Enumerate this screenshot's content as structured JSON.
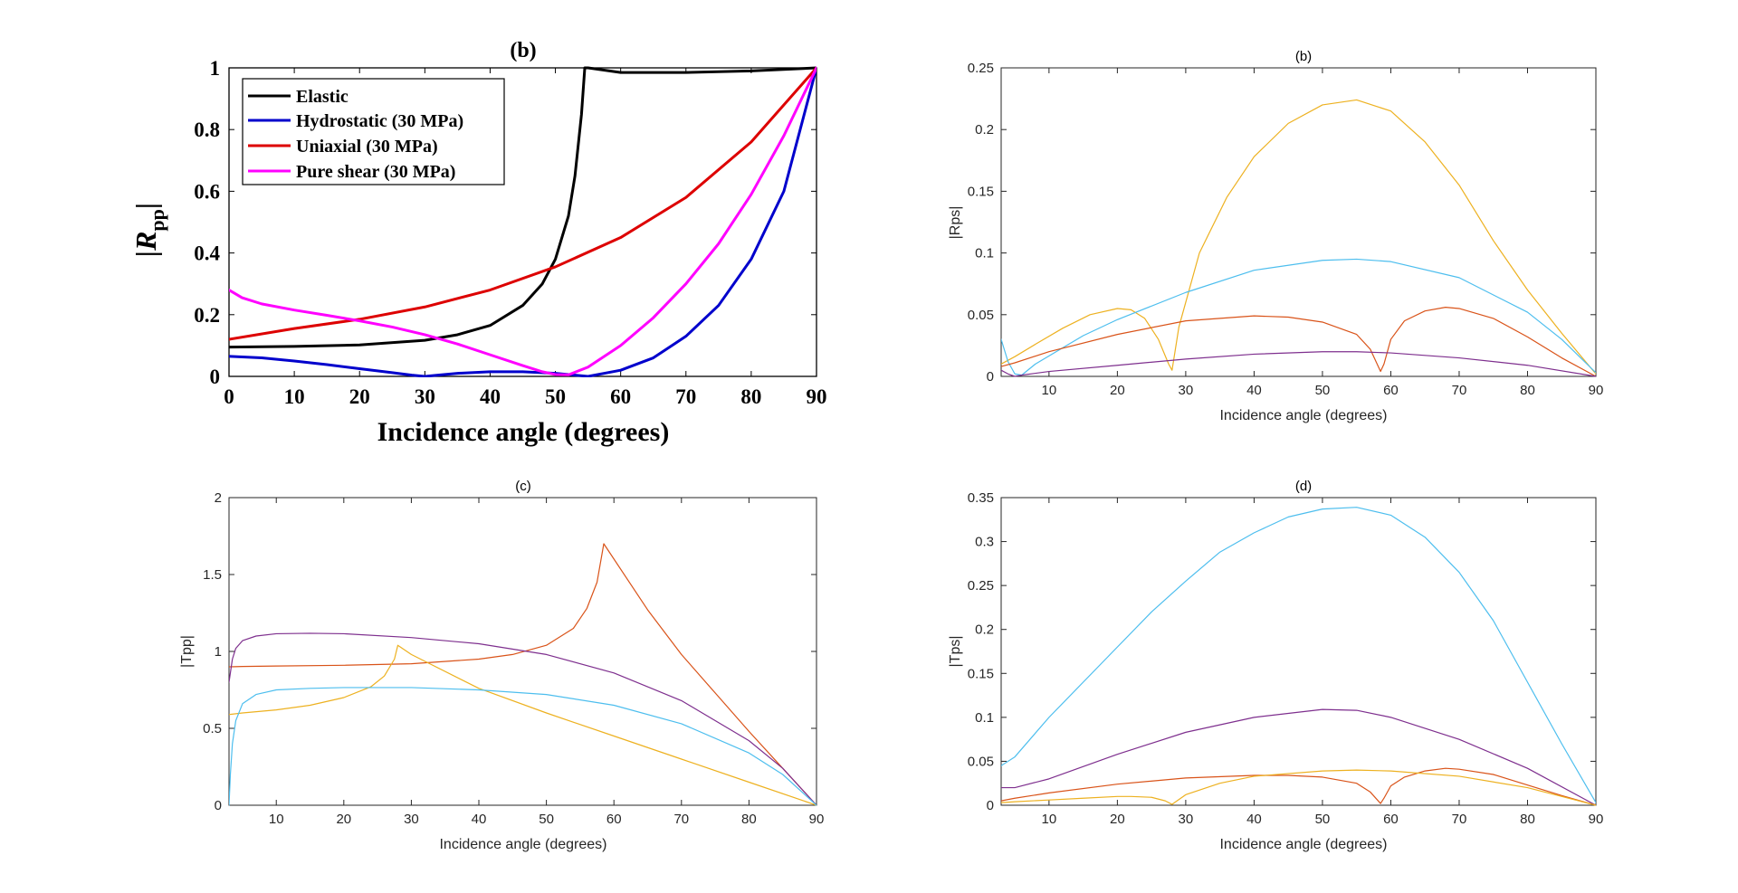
{
  "figure": {
    "background": "#ffffff",
    "colors": {
      "black": "#000000",
      "blue": "#0000cc",
      "red": "#dd0000",
      "magenta": "#ff00ff",
      "matlab_orange": "#D95319",
      "matlab_yellow": "#EDB120",
      "matlab_purple": "#7E2F8E",
      "matlab_cyan": "#4DBEEE"
    }
  },
  "chart_data": [
    {
      "id": "a",
      "type": "line",
      "title": "(b)",
      "xlabel": "Incidence angle (degrees)",
      "ylabel_main": "|R",
      "ylabel_sub": "pp",
      "ylabel_end": "|",
      "xlim": [
        0,
        90
      ],
      "ylim": [
        0,
        1
      ],
      "xticks": [
        0,
        10,
        20,
        30,
        40,
        50,
        60,
        70,
        80,
        90
      ],
      "yticks": [
        0,
        0.2,
        0.4,
        0.6,
        0.8,
        1
      ],
      "ytick_labels": [
        "0",
        "0.2",
        "0.4",
        "0.6",
        "0.8",
        "1"
      ],
      "grid": false,
      "legend_position": "top-left",
      "series": [
        {
          "name": "Elastic",
          "color": "#000000",
          "x": [
            0,
            10,
            20,
            30,
            35,
            40,
            45,
            48,
            50,
            52,
            53,
            54,
            54.5,
            55,
            60,
            70,
            80,
            90
          ],
          "y": [
            0.095,
            0.097,
            0.102,
            0.117,
            0.135,
            0.165,
            0.23,
            0.3,
            0.38,
            0.52,
            0.65,
            0.85,
            1.0,
            1.0,
            0.985,
            0.985,
            0.99,
            1.0
          ]
        },
        {
          "name": "Hydrostatic (30 MPa)",
          "color": "#0000cc",
          "x": [
            0,
            5,
            10,
            15,
            20,
            25,
            28,
            30,
            32,
            35,
            40,
            45,
            50,
            53,
            55,
            60,
            65,
            70,
            75,
            80,
            85,
            90
          ],
          "y": [
            0.065,
            0.06,
            0.05,
            0.038,
            0.025,
            0.012,
            0.004,
            0.0,
            0.004,
            0.01,
            0.015,
            0.015,
            0.01,
            0.004,
            0.0,
            0.02,
            0.06,
            0.13,
            0.23,
            0.38,
            0.6,
            1.0
          ]
        },
        {
          "name": "Uniaxial (30 MPa)",
          "color": "#dd0000",
          "x": [
            0,
            10,
            20,
            30,
            40,
            50,
            60,
            70,
            80,
            90
          ],
          "y": [
            0.12,
            0.155,
            0.185,
            0.225,
            0.28,
            0.355,
            0.45,
            0.58,
            0.76,
            1.0
          ]
        },
        {
          "name": "Pure shear (30 MPa)",
          "color": "#ff00ff",
          "x": [
            0,
            2,
            5,
            10,
            15,
            20,
            25,
            30,
            35,
            40,
            45,
            48,
            50,
            52,
            55,
            60,
            65,
            70,
            75,
            80,
            85,
            90
          ],
          "y": [
            0.28,
            0.255,
            0.235,
            0.215,
            0.198,
            0.18,
            0.16,
            0.135,
            0.105,
            0.07,
            0.035,
            0.015,
            0.006,
            0.005,
            0.03,
            0.1,
            0.19,
            0.3,
            0.43,
            0.59,
            0.78,
            1.0
          ]
        }
      ]
    },
    {
      "id": "b",
      "type": "line",
      "title": "(b)",
      "xlabel": "Incidence angle (degrees)",
      "ylabel": "|Rps|",
      "xlim": [
        3,
        90
      ],
      "ylim": [
        0,
        0.25
      ],
      "xticks": [
        10,
        20,
        30,
        40,
        50,
        60,
        70,
        80,
        90
      ],
      "yticks": [
        0,
        0.05,
        0.1,
        0.15,
        0.2,
        0.25
      ],
      "ytick_labels": [
        "0",
        "0.05",
        "0.1",
        "0.15",
        "0.2",
        "0.25"
      ],
      "grid": false,
      "series": [
        {
          "color": "#EDB120",
          "x": [
            3,
            5,
            8,
            12,
            16,
            20,
            22,
            24,
            26,
            27.5,
            28,
            29,
            32,
            36,
            40,
            45,
            50,
            55,
            60,
            65,
            70,
            75,
            80,
            85,
            90
          ],
          "y": [
            0.01,
            0.016,
            0.026,
            0.039,
            0.05,
            0.055,
            0.054,
            0.047,
            0.03,
            0.01,
            0.005,
            0.04,
            0.1,
            0.145,
            0.178,
            0.205,
            0.22,
            0.224,
            0.215,
            0.19,
            0.155,
            0.11,
            0.07,
            0.035,
            0.002
          ]
        },
        {
          "color": "#4DBEEE",
          "x": [
            3,
            4,
            5,
            6,
            8,
            15,
            20,
            30,
            40,
            50,
            55,
            60,
            70,
            80,
            85,
            90
          ],
          "y": [
            0.03,
            0.012,
            0.002,
            0.001,
            0.01,
            0.033,
            0.046,
            0.068,
            0.086,
            0.094,
            0.095,
            0.093,
            0.08,
            0.052,
            0.03,
            0.003
          ]
        },
        {
          "color": "#D95319",
          "x": [
            3,
            5,
            10,
            20,
            30,
            40,
            45,
            50,
            55,
            57,
            58.5,
            59,
            60,
            62,
            65,
            68,
            70,
            75,
            80,
            85,
            90
          ],
          "y": [
            0.008,
            0.011,
            0.02,
            0.034,
            0.045,
            0.049,
            0.048,
            0.044,
            0.034,
            0.022,
            0.004,
            0.01,
            0.03,
            0.045,
            0.053,
            0.056,
            0.055,
            0.047,
            0.032,
            0.015,
            0.0
          ]
        },
        {
          "color": "#7E2F8E",
          "x": [
            3,
            4,
            5,
            6,
            10,
            20,
            30,
            40,
            50,
            55,
            60,
            70,
            80,
            90
          ],
          "y": [
            0.005,
            0.002,
            0.0,
            0.001,
            0.004,
            0.009,
            0.014,
            0.018,
            0.02,
            0.02,
            0.019,
            0.015,
            0.009,
            0.0
          ]
        }
      ]
    },
    {
      "id": "c",
      "type": "line",
      "title": "(c)",
      "xlabel": "Incidence angle (degrees)",
      "ylabel": "|Tpp|",
      "xlim": [
        3,
        90
      ],
      "ylim": [
        0,
        2
      ],
      "xticks": [
        10,
        20,
        30,
        40,
        50,
        60,
        70,
        80,
        90
      ],
      "yticks": [
        0,
        0.5,
        1,
        1.5,
        2
      ],
      "ytick_labels": [
        "0",
        "0.5",
        "1",
        "1.5",
        "2"
      ],
      "grid": false,
      "series": [
        {
          "color": "#D95319",
          "x": [
            3,
            5,
            10,
            20,
            30,
            40,
            45,
            50,
            54,
            56,
            57.5,
            58.5,
            65,
            70,
            75,
            80,
            85,
            90
          ],
          "y": [
            0.9,
            0.902,
            0.905,
            0.91,
            0.92,
            0.95,
            0.98,
            1.04,
            1.15,
            1.28,
            1.45,
            1.7,
            1.27,
            0.98,
            0.73,
            0.48,
            0.24,
            0.0
          ]
        },
        {
          "color": "#7E2F8E",
          "x": [
            3,
            3.5,
            4,
            5,
            7,
            10,
            15,
            20,
            30,
            40,
            50,
            60,
            70,
            80,
            85,
            90
          ],
          "y": [
            0.8,
            0.95,
            1.02,
            1.07,
            1.1,
            1.115,
            1.118,
            1.115,
            1.09,
            1.05,
            0.98,
            0.86,
            0.68,
            0.42,
            0.24,
            0.0
          ]
        },
        {
          "color": "#EDB120",
          "x": [
            3,
            5,
            10,
            15,
            20,
            24,
            26,
            27.5,
            28,
            30,
            40,
            50,
            60,
            70,
            80,
            90
          ],
          "y": [
            0.59,
            0.6,
            0.62,
            0.65,
            0.7,
            0.77,
            0.84,
            0.95,
            1.04,
            0.98,
            0.76,
            0.6,
            0.45,
            0.3,
            0.15,
            0.0
          ]
        },
        {
          "color": "#4DBEEE",
          "x": [
            3,
            3.2,
            3.5,
            4,
            5,
            7,
            10,
            15,
            20,
            30,
            40,
            50,
            60,
            70,
            80,
            85,
            90
          ],
          "y": [
            0.0,
            0.2,
            0.4,
            0.55,
            0.66,
            0.72,
            0.75,
            0.76,
            0.765,
            0.765,
            0.75,
            0.72,
            0.65,
            0.53,
            0.34,
            0.2,
            0.0
          ]
        }
      ]
    },
    {
      "id": "d",
      "type": "line",
      "title": "(d)",
      "xlabel": "Incidence angle (degrees)",
      "ylabel": "|Tps|",
      "xlim": [
        3,
        90
      ],
      "ylim": [
        0,
        0.35
      ],
      "xticks": [
        10,
        20,
        30,
        40,
        50,
        60,
        70,
        80,
        90
      ],
      "yticks": [
        0,
        0.05,
        0.1,
        0.15,
        0.2,
        0.25,
        0.3,
        0.35
      ],
      "ytick_labels": [
        "0",
        "0.05",
        "0.1",
        "0.15",
        "0.2",
        "0.25",
        "0.3",
        "0.35"
      ],
      "grid": false,
      "series": [
        {
          "color": "#4DBEEE",
          "x": [
            3,
            5,
            10,
            15,
            20,
            25,
            30,
            35,
            40,
            45,
            50,
            55,
            60,
            65,
            70,
            75,
            80,
            85,
            90
          ],
          "y": [
            0.045,
            0.055,
            0.1,
            0.14,
            0.18,
            0.22,
            0.255,
            0.288,
            0.31,
            0.328,
            0.337,
            0.339,
            0.33,
            0.305,
            0.265,
            0.21,
            0.14,
            0.07,
            0.003
          ]
        },
        {
          "color": "#7E2F8E",
          "x": [
            3,
            5,
            10,
            20,
            30,
            40,
            50,
            55,
            60,
            70,
            80,
            90
          ],
          "y": [
            0.02,
            0.02,
            0.03,
            0.058,
            0.083,
            0.1,
            0.109,
            0.108,
            0.1,
            0.075,
            0.042,
            0.0
          ]
        },
        {
          "color": "#D95319",
          "x": [
            3,
            5,
            10,
            20,
            30,
            40,
            45,
            50,
            55,
            57,
            58.5,
            59,
            60,
            62,
            65,
            68,
            70,
            75,
            80,
            85,
            90
          ],
          "y": [
            0.005,
            0.008,
            0.014,
            0.024,
            0.031,
            0.034,
            0.034,
            0.032,
            0.025,
            0.015,
            0.002,
            0.008,
            0.022,
            0.032,
            0.039,
            0.042,
            0.041,
            0.035,
            0.023,
            0.011,
            0.0
          ]
        },
        {
          "color": "#EDB120",
          "x": [
            3,
            5,
            10,
            15,
            20,
            22,
            25,
            27,
            28,
            30,
            35,
            40,
            50,
            55,
            60,
            70,
            80,
            90
          ],
          "y": [
            0.003,
            0.004,
            0.006,
            0.008,
            0.01,
            0.01,
            0.009,
            0.005,
            0.001,
            0.012,
            0.025,
            0.033,
            0.039,
            0.04,
            0.039,
            0.033,
            0.02,
            0.0
          ]
        }
      ]
    }
  ]
}
